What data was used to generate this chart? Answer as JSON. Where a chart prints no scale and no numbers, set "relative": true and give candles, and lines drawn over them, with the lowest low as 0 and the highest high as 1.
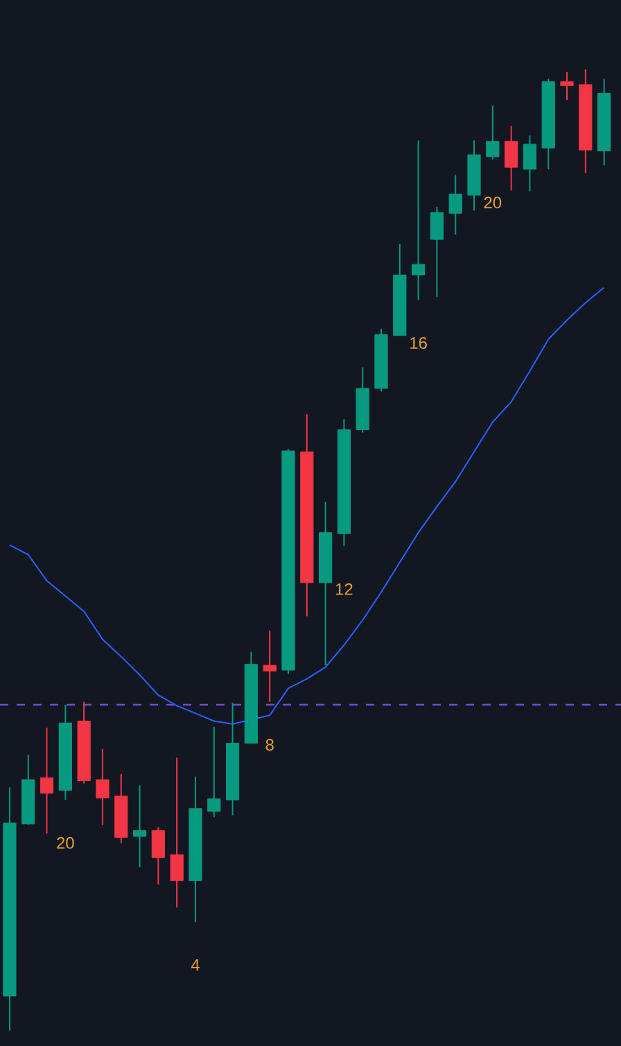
{
  "chart_data": {
    "type": "candlestick",
    "relative": true,
    "categories": [
      null,
      null,
      null,
      null,
      null,
      null,
      null,
      null,
      null,
      null,
      null,
      null,
      null,
      null,
      null,
      null,
      null,
      null,
      null,
      null,
      null,
      null,
      null,
      null,
      null,
      null,
      null,
      null,
      null,
      null,
      null,
      null,
      null
    ],
    "ohlc": [
      [
        0.036,
        0.253,
        0,
        0.216
      ],
      [
        0.215,
        0.287,
        0.214,
        0.261
      ],
      [
        0.263,
        0.315,
        0.205,
        0.247
      ],
      [
        0.25,
        0.339,
        0.24,
        0.32
      ],
      [
        0.322,
        0.342,
        0.257,
        0.26
      ],
      [
        0.261,
        0.293,
        0.214,
        0.242
      ],
      [
        0.244,
        0.267,
        0.195,
        0.201
      ],
      [
        0.202,
        0.255,
        0.17,
        0.208
      ],
      [
        0.208,
        0.212,
        0.152,
        0.18
      ],
      [
        0.183,
        0.284,
        0.128,
        0.156
      ],
      [
        0.156,
        0.264,
        0.113,
        0.231
      ],
      [
        0.228,
        0.316,
        0.222,
        0.241
      ],
      [
        0.24,
        0.341,
        0.224,
        0.299
      ],
      [
        0.299,
        0.394,
        0.299,
        0.381
      ],
      [
        0.38,
        0.416,
        0.342,
        0.374
      ],
      [
        0.375,
        0.605,
        0.371,
        0.603
      ],
      [
        0.602,
        0.641,
        0.431,
        0.466
      ],
      [
        0.466,
        0.55,
        0.38,
        0.518
      ],
      [
        0.517,
        0.636,
        0.504,
        0.625
      ],
      [
        0.625,
        0.69,
        0.622,
        0.668
      ],
      [
        0.668,
        0.73,
        0.665,
        0.724
      ],
      [
        0.723,
        0.818,
        0.723,
        0.786
      ],
      [
        0.786,
        0.926,
        0.76,
        0.797
      ],
      [
        0.823,
        0.857,
        0.763,
        0.851
      ],
      [
        0.85,
        0.89,
        0.828,
        0.87
      ],
      [
        0.869,
        0.926,
        0.853,
        0.911
      ],
      [
        0.909,
        0.962,
        0.906,
        0.925
      ],
      [
        0.925,
        0.941,
        0.874,
        0.898
      ],
      [
        0.896,
        0.931,
        0.873,
        0.922
      ],
      [
        0.918,
        0.99,
        0.896,
        0.987
      ],
      [
        0.987,
        0.997,
        0.968,
        0.983
      ],
      [
        0.984,
        1,
        0.892,
        0.916
      ],
      [
        0.915,
        0.99,
        0.9,
        0.975
      ]
    ],
    "colors": [
      "#089981",
      "#089981",
      "#f23645",
      "#089981",
      "#f23645",
      "#f23645",
      "#f23645",
      "#089981",
      "#f23645",
      "#f23645",
      "#089981",
      "#089981",
      "#089981",
      "#089981",
      "#f23645",
      "#089981",
      "#f23645",
      "#089981",
      "#089981",
      "#089981",
      "#089981",
      "#089981",
      "#089981",
      "#089981",
      "#089981",
      "#089981",
      "#089981",
      "#f23645",
      "#089981",
      "#089981",
      "#f23645",
      "#f23645",
      "#089981"
    ],
    "value_labels": [
      null,
      null,
      null,
      "20",
      null,
      null,
      null,
      null,
      null,
      null,
      "4",
      null,
      null,
      null,
      "8",
      null,
      null,
      null,
      "12",
      null,
      null,
      null,
      "16",
      null,
      null,
      null,
      "20",
      null,
      null,
      null,
      null,
      null,
      null
    ],
    "series": [
      {
        "type": "line",
        "color": "#2962ff",
        "values": [
          0.505,
          0.495,
          0.468,
          0.452,
          0.436,
          0.407,
          0.389,
          0.37,
          0.349,
          0.338,
          0.33,
          0.322,
          0.319,
          null,
          0.328,
          0.356,
          0.366,
          0.378,
          0.401,
          0.427,
          0.456,
          0.487,
          0.518,
          0.545,
          0.571,
          0.602,
          0.633,
          0.654,
          0.686,
          0.719,
          0.739,
          0.757,
          0.773
        ]
      }
    ],
    "ref_lines": [
      {
        "axis": "y",
        "value": 0.339,
        "color": "#6f4fd0",
        "line_style": "dashed"
      }
    ]
  }
}
